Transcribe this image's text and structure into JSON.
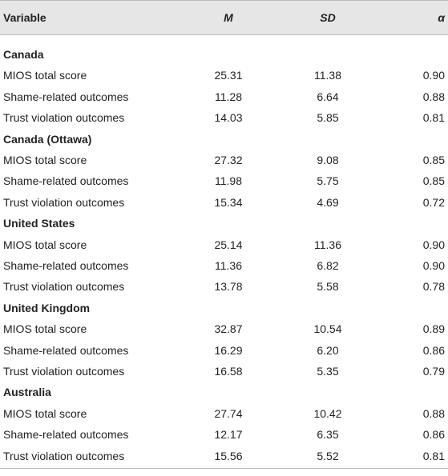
{
  "table": {
    "columns": [
      "Variable",
      "M",
      "SD",
      "α"
    ],
    "groups": [
      {
        "name": "Canada",
        "rows": [
          [
            "MIOS total score",
            "25.31",
            "11.38",
            "0.90"
          ],
          [
            "Shame-related outcomes",
            "11.28",
            "6.64",
            "0.88"
          ],
          [
            "Trust violation outcomes",
            "14.03",
            "5.85",
            "0.81"
          ]
        ]
      },
      {
        "name": "Canada (Ottawa)",
        "rows": [
          [
            "MIOS total score",
            "27.32",
            "9.08",
            "0.85"
          ],
          [
            "Shame-related outcomes",
            "11.98",
            "5.75",
            "0.85"
          ],
          [
            "Trust violation outcomes",
            "15.34",
            "4.69",
            "0.72"
          ]
        ]
      },
      {
        "name": "United States",
        "rows": [
          [
            "MIOS total score",
            "25.14",
            "11.36",
            "0.90"
          ],
          [
            "Shame-related outcomes",
            "11.36",
            "6.82",
            "0.90"
          ],
          [
            "Trust violation outcomes",
            "13.78",
            "5.58",
            "0.78"
          ]
        ]
      },
      {
        "name": "United Kingdom",
        "rows": [
          [
            "MIOS total score",
            "32.87",
            "10.54",
            "0.89"
          ],
          [
            "Shame-related outcomes",
            "16.29",
            "6.20",
            "0.86"
          ],
          [
            "Trust violation outcomes",
            "16.58",
            "5.35",
            "0.79"
          ]
        ]
      },
      {
        "name": "Australia",
        "rows": [
          [
            "MIOS total score",
            "27.74",
            "10.42",
            "0.88"
          ],
          [
            "Shame-related outcomes",
            "12.17",
            "6.35",
            "0.86"
          ],
          [
            "Trust violation outcomes",
            "15.56",
            "5.52",
            "0.81"
          ]
        ]
      }
    ]
  }
}
